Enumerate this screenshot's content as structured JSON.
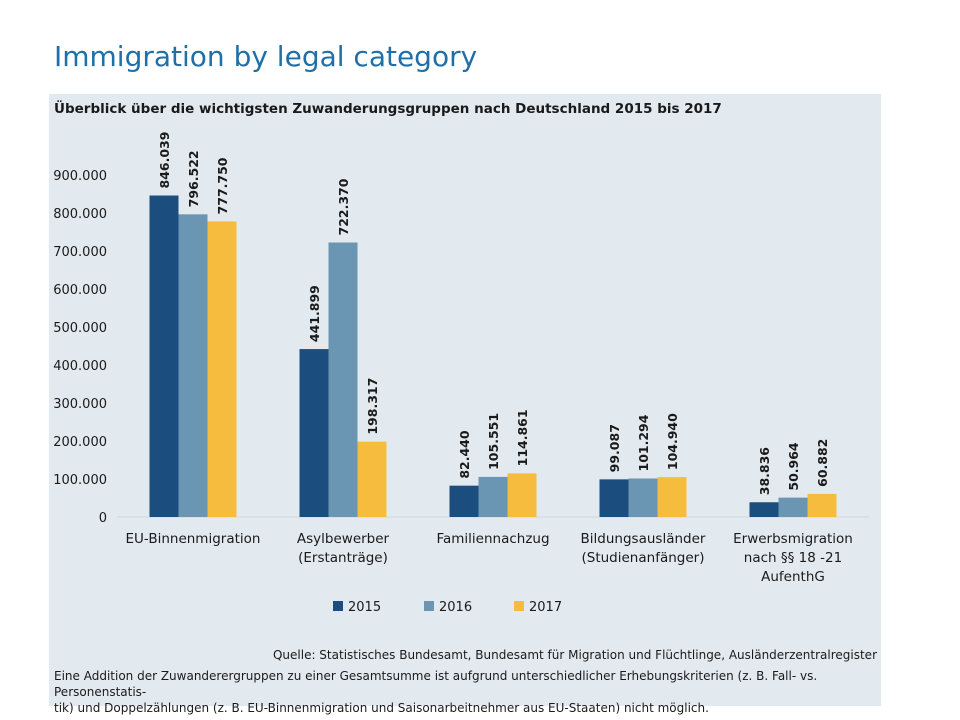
{
  "slide": {
    "title": "Immigration by legal category"
  },
  "chart_data": {
    "type": "bar",
    "title": "Überblick über die wichtigsten Zuwanderungsgruppen nach Deutschland 2015 bis 2017",
    "xlabel": "",
    "ylabel": "",
    "ylim": [
      0,
      900000
    ],
    "yticks": [
      "0",
      "100.000",
      "200.000",
      "300.000",
      "400.000",
      "500.000",
      "600.000",
      "700.000",
      "800.000",
      "900.000"
    ],
    "grid": false,
    "legend_position": "bottom",
    "categories": [
      [
        "EU-Binnenmigration"
      ],
      [
        "Asylbewerber",
        "(Erstanträge)"
      ],
      [
        "Familiennachzug"
      ],
      [
        "Bildungsausländer",
        "(Studienanfänger)"
      ],
      [
        "Erwerbsmigration",
        "nach  §§ 18 -21",
        "AufenthG"
      ]
    ],
    "series": [
      {
        "name": "2015",
        "color": "#1b4e7e",
        "values": [
          846039,
          441899,
          82440,
          99087,
          38836
        ],
        "labels": [
          "846.039",
          "441.899",
          "82.440",
          "99.087",
          "38.836"
        ]
      },
      {
        "name": "2016",
        "color": "#6a95b3",
        "values": [
          796522,
          722370,
          105551,
          101294,
          50964
        ],
        "labels": [
          "796.522",
          "722.370",
          "105.551",
          "101.294",
          "50.964"
        ]
      },
      {
        "name": "2017",
        "color": "#f6bc3e",
        "values": [
          777750,
          198317,
          114861,
          104940,
          60882
        ],
        "labels": [
          "777.750",
          "198.317",
          "114.861",
          "104.940",
          "60.882"
        ]
      }
    ],
    "source": "Quelle: Statistisches Bundesamt, Bundesamt für Migration und Flüchtlinge, Ausländerzentralregister",
    "note_lines": [
      "Eine Addition der Zuwanderergruppen zu einer Gesamtsumme ist aufgrund unterschiedlicher Erhebungskriterien (z. B. Fall- vs. Personenstatis-",
      "tik) und Doppelzählungen (z. B. EU-Binnenmigration und Saisonarbeitnehmer aus EU-Staaten) nicht möglich."
    ]
  }
}
